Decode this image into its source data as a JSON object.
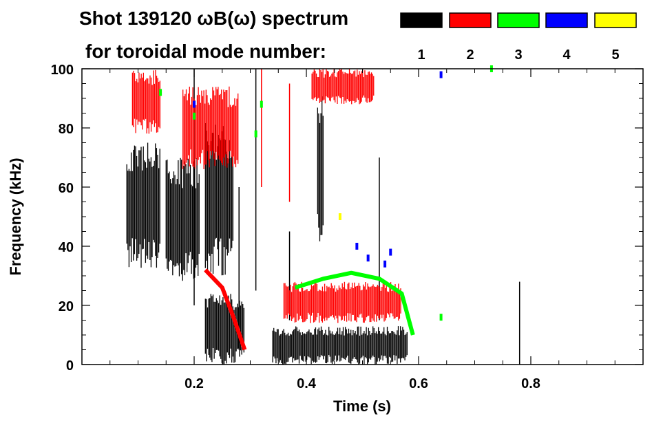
{
  "chart_data": {
    "type": "heatmap",
    "title": "Shot 139120 ωB(ω) spectrum",
    "subtitle": "for toroidal mode number:",
    "xlabel": "Time (s)",
    "ylabel": "Frequency (kHz)",
    "xlim": [
      0.0,
      1.0
    ],
    "ylim": [
      0,
      100
    ],
    "x_ticks": [
      0.2,
      0.4,
      0.6,
      0.8
    ],
    "x_tick_labels": [
      "0.2",
      "0.4",
      "0.6",
      "0.8"
    ],
    "y_ticks": [
      0,
      20,
      40,
      60,
      80,
      100
    ],
    "y_tick_labels": [
      "0",
      "20",
      "40",
      "60",
      "80",
      "100"
    ],
    "legend_position": "top-right",
    "legend": [
      {
        "label": "1",
        "color": "#000000"
      },
      {
        "label": "2",
        "color": "#ff0000"
      },
      {
        "label": "3",
        "color": "#00ff00"
      },
      {
        "label": "4",
        "color": "#0000ff"
      },
      {
        "label": "5",
        "color": "#ffff00"
      }
    ],
    "series": [
      {
        "name": "1",
        "color": "#000000",
        "regions": [
          {
            "t": [
              0.08,
              0.14
            ],
            "f": [
              32,
              76
            ]
          },
          {
            "t": [
              0.15,
              0.21
            ],
            "f": [
              28,
              70
            ]
          },
          {
            "t": [
              0.22,
              0.27
            ],
            "f": [
              30,
              82
            ]
          },
          {
            "t": [
              0.22,
              0.29
            ],
            "f": [
              0,
              24
            ]
          },
          {
            "t": [
              0.34,
              0.58
            ],
            "f": [
              0,
              13
            ]
          },
          {
            "t": [
              0.42,
              0.43
            ],
            "f": [
              36,
              96
            ]
          }
        ],
        "lines": [
          {
            "t": 0.2,
            "f": [
              20,
              100
            ]
          },
          {
            "t": 0.28,
            "f": [
              5,
              60
            ]
          },
          {
            "t": 0.31,
            "f": [
              25,
              100
            ]
          },
          {
            "t": 0.37,
            "f": [
              15,
              45
            ]
          },
          {
            "t": 0.53,
            "f": [
              15,
              70
            ]
          },
          {
            "t": 0.78,
            "f": [
              0,
              28
            ]
          }
        ]
      },
      {
        "name": "2",
        "color": "#ff0000",
        "regions": [
          {
            "t": [
              0.09,
              0.14
            ],
            "f": [
              78,
              100
            ]
          },
          {
            "t": [
              0.18,
              0.28
            ],
            "f": [
              66,
              94
            ]
          },
          {
            "t": [
              0.36,
              0.57
            ],
            "f": [
              14,
              28
            ]
          },
          {
            "t": [
              0.41,
              0.52
            ],
            "f": [
              88,
              100
            ]
          }
        ],
        "lines": [
          {
            "t": 0.32,
            "f": [
              60,
              100
            ]
          },
          {
            "t": 0.37,
            "f": [
              55,
              95
            ]
          }
        ],
        "curve": [
          [
            0.22,
            32
          ],
          [
            0.25,
            26
          ],
          [
            0.27,
            16
          ],
          [
            0.29,
            5
          ]
        ]
      },
      {
        "name": "3",
        "color": "#00ff00",
        "curve": [
          [
            0.38,
            26
          ],
          [
            0.43,
            29
          ],
          [
            0.48,
            31
          ],
          [
            0.53,
            29
          ],
          [
            0.57,
            24
          ],
          [
            0.59,
            10
          ]
        ],
        "points": [
          [
            0.14,
            92
          ],
          [
            0.2,
            84
          ],
          [
            0.31,
            78
          ],
          [
            0.32,
            88
          ],
          [
            0.64,
            16
          ],
          [
            0.73,
            100
          ]
        ]
      },
      {
        "name": "4",
        "color": "#0000ff",
        "points": [
          [
            0.2,
            88
          ],
          [
            0.49,
            40
          ],
          [
            0.51,
            36
          ],
          [
            0.54,
            34
          ],
          [
            0.55,
            38
          ],
          [
            0.64,
            98
          ]
        ]
      },
      {
        "name": "5",
        "color": "#ffff00",
        "points": [
          [
            0.46,
            50
          ]
        ]
      }
    ]
  }
}
